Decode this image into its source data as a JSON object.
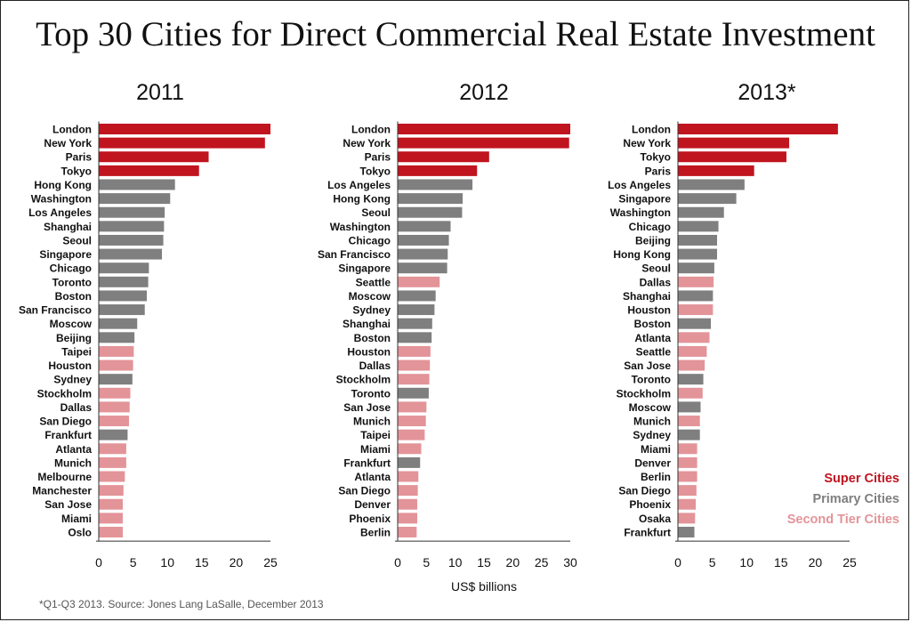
{
  "title": "Top 30 Cities for Direct Commercial Real Estate Investment",
  "footnote": "*Q1-Q3 2013.  Source: Jones Lang LaSalle, December 2013",
  "xlabel": "US$ billions",
  "colors": {
    "super": "#c0141f",
    "primary": "#7f7f7f",
    "second": "#e39499"
  },
  "legend": [
    {
      "label": "Super Cities",
      "tier": "super"
    },
    {
      "label": "Primary Cities",
      "tier": "primary"
    },
    {
      "label": "Second Tier  Cities",
      "tier": "second"
    }
  ],
  "chart_data": [
    {
      "type": "bar",
      "orientation": "horizontal",
      "title": "2011",
      "xlim": [
        0,
        25
      ],
      "xticks": [
        0,
        5,
        10,
        15,
        20,
        25
      ],
      "categories": [
        "London",
        "New York",
        "Paris",
        "Tokyo",
        "Hong Kong",
        "Washington",
        "Los Angeles",
        "Shanghai",
        "Seoul",
        "Singapore",
        "Chicago",
        "Toronto",
        "Boston",
        "San Francisco",
        "Moscow",
        "Beijing",
        "Taipei",
        "Houston",
        "Sydney",
        "Stockholm",
        "Dallas",
        "San Diego",
        "Frankfurt",
        "Atlanta",
        "Munich",
        "Melbourne",
        "Manchester",
        "San Jose",
        "Miami",
        "Oslo"
      ],
      "values": [
        25.0,
        24.2,
        16.0,
        14.6,
        11.1,
        10.4,
        9.6,
        9.5,
        9.4,
        9.2,
        7.3,
        7.2,
        7.0,
        6.7,
        5.6,
        5.2,
        5.1,
        5.0,
        4.9,
        4.6,
        4.5,
        4.4,
        4.2,
        4.0,
        4.0,
        3.8,
        3.6,
        3.5,
        3.5,
        3.5
      ],
      "tiers": [
        "super",
        "super",
        "super",
        "super",
        "primary",
        "primary",
        "primary",
        "primary",
        "primary",
        "primary",
        "primary",
        "primary",
        "primary",
        "primary",
        "primary",
        "primary",
        "second",
        "second",
        "primary",
        "second",
        "second",
        "second",
        "primary",
        "second",
        "second",
        "second",
        "second",
        "second",
        "second",
        "second"
      ]
    },
    {
      "type": "bar",
      "orientation": "horizontal",
      "title": "2012",
      "xlim": [
        0,
        30
      ],
      "xticks": [
        0,
        5,
        10,
        15,
        20,
        25,
        30
      ],
      "categories": [
        "London",
        "New York",
        "Paris",
        "Tokyo",
        "Los Angeles",
        "Hong Kong",
        "Seoul",
        "Washington",
        "Chicago",
        "San Francisco",
        "Singapore",
        "Seattle",
        "Moscow",
        "Sydney",
        "Shanghai",
        "Boston",
        "Houston",
        "Dallas",
        "Stockholm",
        "Toronto",
        "San Jose",
        "Munich",
        "Taipei",
        "Miami",
        "Frankfurt",
        "Atlanta",
        "San Diego",
        "Denver",
        "Phoenix",
        "Berlin"
      ],
      "values": [
        30.0,
        29.8,
        15.9,
        13.8,
        13.0,
        11.3,
        11.2,
        9.2,
        8.9,
        8.7,
        8.6,
        7.3,
        6.6,
        6.4,
        6.0,
        5.9,
        5.7,
        5.6,
        5.5,
        5.4,
        5.0,
        4.9,
        4.7,
        4.1,
        3.9,
        3.6,
        3.5,
        3.4,
        3.4,
        3.3
      ],
      "tiers": [
        "super",
        "super",
        "super",
        "super",
        "primary",
        "primary",
        "primary",
        "primary",
        "primary",
        "primary",
        "primary",
        "second",
        "primary",
        "primary",
        "primary",
        "primary",
        "second",
        "second",
        "second",
        "primary",
        "second",
        "second",
        "second",
        "second",
        "primary",
        "second",
        "second",
        "second",
        "second",
        "second"
      ]
    },
    {
      "type": "bar",
      "orientation": "horizontal",
      "title": "2013*",
      "xlim": [
        0,
        25
      ],
      "xticks": [
        0,
        5,
        10,
        15,
        20,
        25
      ],
      "categories": [
        "London",
        "New York",
        "Tokyo",
        "Paris",
        "Los Angeles",
        "Singapore",
        "Washington",
        "Chicago",
        "Beijing",
        "Hong Kong",
        "Seoul",
        "Dallas",
        "Shanghai",
        "Houston",
        "Boston",
        "Atlanta",
        "Seattle",
        "San Jose",
        "Toronto",
        "Stockholm",
        "Moscow",
        "Munich",
        "Sydney",
        "Miami",
        "Denver",
        "Berlin",
        "San Diego",
        "Phoenix",
        "Osaka",
        "Frankfurt"
      ],
      "values": [
        23.3,
        16.2,
        15.8,
        11.1,
        9.7,
        8.5,
        6.7,
        5.9,
        5.7,
        5.7,
        5.3,
        5.2,
        5.1,
        5.1,
        4.8,
        4.6,
        4.2,
        3.9,
        3.7,
        3.6,
        3.3,
        3.2,
        3.2,
        2.8,
        2.8,
        2.8,
        2.7,
        2.6,
        2.5,
        2.4
      ],
      "tiers": [
        "super",
        "super",
        "super",
        "super",
        "primary",
        "primary",
        "primary",
        "primary",
        "primary",
        "primary",
        "primary",
        "second",
        "primary",
        "second",
        "primary",
        "second",
        "second",
        "second",
        "primary",
        "second",
        "primary",
        "second",
        "primary",
        "second",
        "second",
        "second",
        "second",
        "second",
        "second",
        "primary"
      ]
    }
  ]
}
